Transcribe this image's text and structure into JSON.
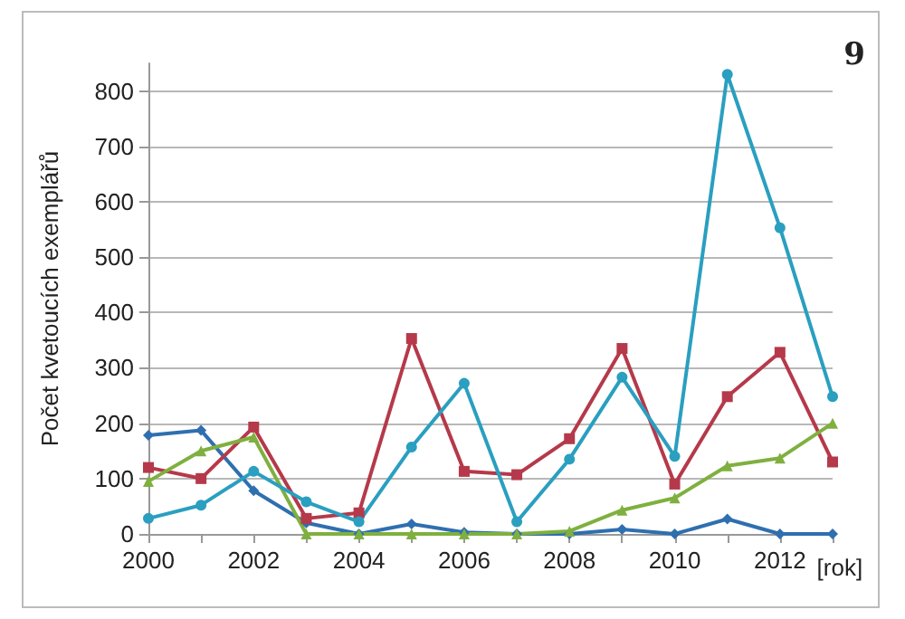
{
  "chart_data": {
    "type": "line",
    "ylabel": "Počet kvetoucích exemplářů",
    "xlabel": "[rok]",
    "annotations": [
      "9"
    ],
    "x": [
      2000,
      2001,
      2002,
      2003,
      2004,
      2005,
      2006,
      2007,
      2008,
      2009,
      2010,
      2011,
      2012,
      2013
    ],
    "xlim": [
      2000,
      2013
    ],
    "xticks": [
      2000,
      {
        "value": 2001,
        "label": null
      },
      2002,
      {
        "value": 2003,
        "label": null
      },
      2004,
      {
        "value": 2005,
        "label": null
      },
      2006,
      {
        "value": 2007,
        "label": null
      },
      2008,
      {
        "value": 2009,
        "label": null
      },
      2010,
      {
        "value": 2011,
        "label": null
      },
      2012,
      {
        "value": 2013,
        "label": null
      }
    ],
    "ylim": [
      0,
      850
    ],
    "yticks": [
      0,
      100,
      200,
      300,
      400,
      500,
      600,
      700,
      800
    ],
    "grid": "y",
    "series": [
      {
        "color": "#2f6fb0",
        "marker": "diamond",
        "values": [
          178,
          187,
          78,
          20,
          0,
          18,
          3,
          0,
          0,
          8,
          0,
          27,
          0,
          0
        ]
      },
      {
        "color": "#b5394a",
        "marker": "square",
        "values": [
          120,
          100,
          193,
          28,
          38,
          353,
          113,
          107,
          172,
          335,
          90,
          248,
          328,
          130
        ]
      },
      {
        "color": "#7fb03f",
        "marker": "triangle",
        "values": [
          95,
          150,
          175,
          0,
          0,
          0,
          0,
          0,
          5,
          43,
          65,
          123,
          137,
          200
        ]
      },
      {
        "color": "#2a9fc0",
        "marker": "circle",
        "values": [
          28,
          52,
          113,
          58,
          22,
          157,
          272,
          22,
          135,
          283,
          140,
          830,
          553,
          248
        ]
      }
    ]
  }
}
